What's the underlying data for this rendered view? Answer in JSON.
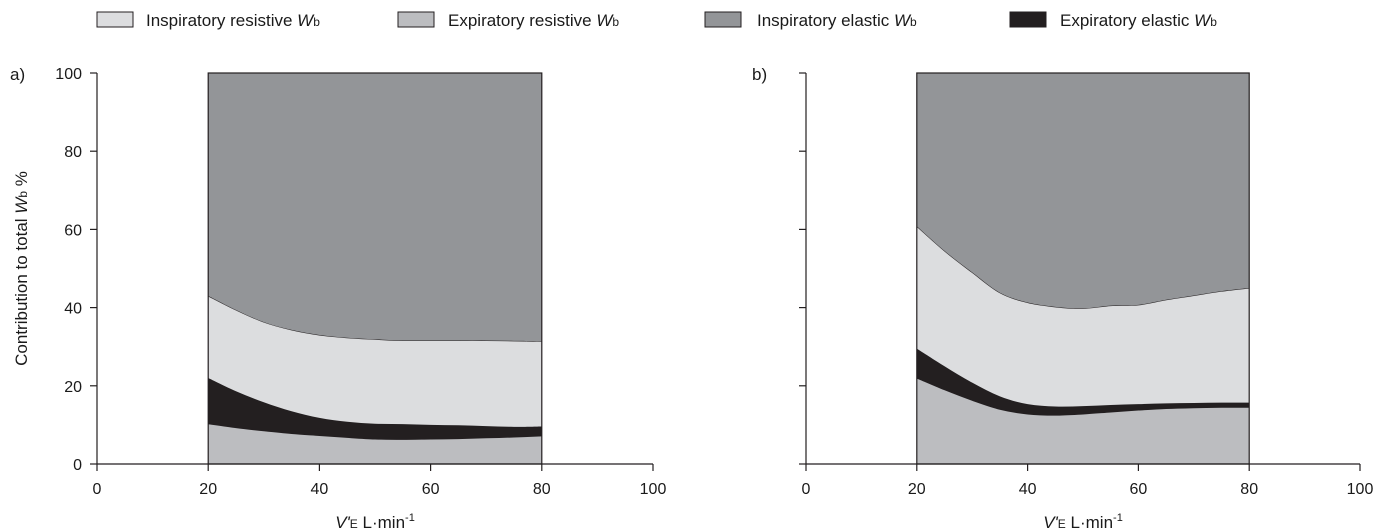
{
  "legend": [
    {
      "label": "Inspiratory resistive ",
      "italic": "W",
      "sub": "b",
      "color": "#dcdddf"
    },
    {
      "label": "Expiratory resistive ",
      "italic": "W",
      "sub": "b",
      "color": "#bcbdc0"
    },
    {
      "label": "Inspiratory elastic ",
      "italic": "W",
      "sub": "b",
      "color": "#939598"
    },
    {
      "label": "Expiratory elastic ",
      "italic": "W",
      "sub": "b",
      "color": "#231f20"
    }
  ],
  "ylabel": {
    "pre": "Contribution to total ",
    "italic": "W",
    "sub": "b",
    "post": " %"
  },
  "xlabel": {
    "italic": "V'",
    "sub": "E",
    "post": " L·min",
    "sup": "-1"
  },
  "chart_data": [
    {
      "panel": "a)",
      "type": "area",
      "stacked": true,
      "x": [
        20,
        25,
        30,
        35,
        40,
        45,
        50,
        55,
        60,
        65,
        70,
        75,
        80
      ],
      "xlim": [
        0,
        100
      ],
      "ylim": [
        0,
        100
      ],
      "xticks": [
        0,
        20,
        40,
        60,
        80,
        100
      ],
      "yticks": [
        0,
        20,
        40,
        60,
        80,
        100
      ],
      "series": [
        {
          "label": "Expiratory resistive Wb",
          "color": "#bcbdc0",
          "values": [
            10.3,
            9.3,
            8.5,
            7.8,
            7.3,
            6.8,
            6.4,
            6.3,
            6.4,
            6.5,
            6.7,
            6.9,
            7.2
          ]
        },
        {
          "label": "Expiratory elastic Wb",
          "color": "#231f20",
          "values": [
            11.7,
            9.3,
            7.3,
            5.7,
            4.5,
            4.0,
            3.9,
            3.9,
            3.6,
            3.4,
            3.0,
            2.6,
            2.4
          ]
        },
        {
          "label": "Inspiratory resistive Wb",
          "color": "#dcdddf",
          "values": [
            21.0,
            20.8,
            20.5,
            20.8,
            21.2,
            21.5,
            21.6,
            21.4,
            21.6,
            21.7,
            21.9,
            22.0,
            21.8
          ]
        },
        {
          "label": "Inspiratory elastic Wb",
          "color": "#939598",
          "values": [
            57.0,
            60.6,
            63.7,
            65.7,
            67.0,
            67.7,
            68.1,
            68.4,
            68.4,
            68.4,
            68.4,
            68.5,
            68.6
          ]
        }
      ]
    },
    {
      "panel": "b)",
      "type": "area",
      "stacked": true,
      "x": [
        20,
        25,
        30,
        35,
        40,
        45,
        50,
        55,
        60,
        65,
        70,
        75,
        80
      ],
      "xlim": [
        0,
        100
      ],
      "ylim": [
        0,
        100
      ],
      "xticks": [
        0,
        20,
        40,
        60,
        80,
        100
      ],
      "yticks": [
        0,
        20,
        40,
        60,
        80,
        100
      ],
      "series": [
        {
          "label": "Expiratory resistive Wb",
          "color": "#bcbdc0",
          "values": [
            22.0,
            19.0,
            16.3,
            14.0,
            12.8,
            12.5,
            12.8,
            13.3,
            13.8,
            14.2,
            14.4,
            14.5,
            14.5
          ]
        },
        {
          "label": "Expiratory elastic Wb",
          "color": "#231f20",
          "values": [
            7.5,
            6.0,
            4.5,
            3.3,
            2.5,
            2.2,
            2.0,
            1.8,
            1.5,
            1.3,
            1.2,
            1.2,
            1.2
          ]
        },
        {
          "label": "Inspiratory resistive Wb",
          "color": "#dcdddf",
          "values": [
            31.3,
            29.5,
            28.2,
            26.5,
            26.0,
            25.5,
            25.0,
            25.4,
            25.4,
            26.5,
            27.5,
            28.5,
            29.3
          ]
        },
        {
          "label": "Inspiratory elastic Wb",
          "color": "#939598",
          "values": [
            39.2,
            45.5,
            51.0,
            56.2,
            58.7,
            59.8,
            60.2,
            59.5,
            59.3,
            58.0,
            56.9,
            55.8,
            55.0
          ]
        }
      ]
    }
  ]
}
